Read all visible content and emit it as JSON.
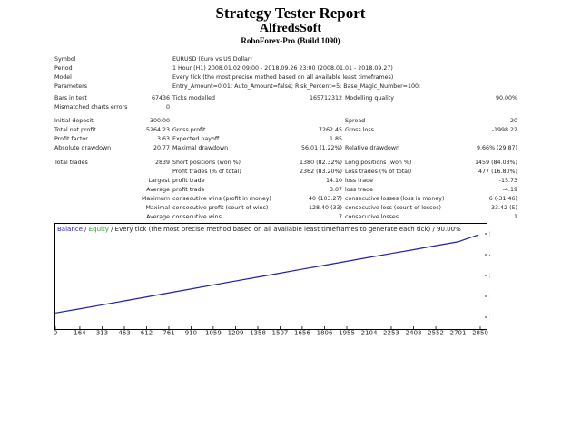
{
  "report": {
    "title": "Strategy Tester Report",
    "company": "AlfredsSoft",
    "server": "RoboForex-Pro (Build 1090)"
  },
  "header_rows": [
    {
      "label": "Symbol",
      "value": "EURUSD (Euro vs US Dollar)"
    },
    {
      "label": "Period",
      "value": "1 Hour (H1) 2008.01.02 09:00 - 2018.09.26 23:00 (2008.01.01 - 2018.09.27)"
    },
    {
      "label": "Model",
      "value": "Every tick (the most precise method based on all available least timeframes)"
    },
    {
      "label": "Parameters",
      "value": "Entry_Amount=0.01; Auto_Amount=false; Risk_Percent=5; Base_Magic_Number=100;"
    }
  ],
  "bars_block": {
    "bars_label": "Bars in test",
    "bars_value": "67436",
    "ticks_label": "Ticks modelled",
    "ticks_value": "165712312",
    "quality_label": "Modelling quality",
    "quality_value": "90.00%",
    "mismatch_label": "Mismatched charts errors",
    "mismatch_value": "0"
  },
  "stats": {
    "initial_deposit_label": "Initial deposit",
    "initial_deposit": "300.00",
    "spread_label": "Spread",
    "spread": "20",
    "net_profit_label": "Total net profit",
    "net_profit": "5264.23",
    "gross_profit_label": "Gross profit",
    "gross_profit": "7262.45",
    "gross_loss_label": "Gross loss",
    "gross_loss": "-1998.22",
    "profit_factor_label": "Profit factor",
    "profit_factor": "3.63",
    "expected_payoff_label": "Expected payoff",
    "expected_payoff": "1.85",
    "abs_dd_label": "Absolute drawdown",
    "abs_dd": "20.77",
    "max_dd_label": "Maximal drawdown",
    "max_dd": "56.01 (1.22%)",
    "rel_dd_label": "Relative drawdown",
    "rel_dd": "9.66% (29.87)"
  },
  "trades": {
    "total_label": "Total trades",
    "total": "2839",
    "short_label": "Short positions (won %)",
    "short": "1380 (82.32%)",
    "long_label": "Long positions (won %)",
    "long": "1459 (84.03%)",
    "profit_trades_label": "Profit trades (% of total)",
    "profit_trades": "2362 (83.20%)",
    "loss_trades_label": "Loss trades (% of total)",
    "loss_trades": "477 (16.80%)",
    "largest_label": "Largest",
    "largest_profit_label": "profit trade",
    "largest_profit": "14.10",
    "largest_loss_label": "loss trade",
    "largest_loss": "-15.73",
    "average_label": "Average",
    "average_profit_label": "profit trade",
    "average_profit": "3.07",
    "average_loss_label": "loss trade",
    "average_loss": "-4.19",
    "maximum_label": "Maximum",
    "max_cons_wins_label": "consecutive wins (profit in money)",
    "max_cons_wins": "40 (103.27)",
    "max_cons_losses_label": "consecutive losses (loss in money)",
    "max_cons_losses": "6 (-31.46)",
    "maximal_label": "Maximal",
    "maximal_cons_profit_label": "consecutive profit (count of wins)",
    "maximal_cons_profit": "128.40 (33)",
    "maximal_cons_loss_label": "consecutive loss (count of losses)",
    "maximal_cons_loss": "-33.42 (5)",
    "avg2_label": "Average",
    "avg_cons_wins_label": "consecutive wins",
    "avg_cons_wins": "7",
    "avg_cons_losses_label": "consecutive losses",
    "avg_cons_losses": "1"
  },
  "chart_data": {
    "type": "line",
    "legend": {
      "balance": "Balance",
      "sep1": " / ",
      "equity": "Equity",
      "rest": " / Every tick (the most precise method based on all available least timeframes to generate each tick) / 90.00%"
    },
    "x_ticks": [
      "0",
      "164",
      "313",
      "463",
      "612",
      "761",
      "910",
      "1059",
      "1209",
      "1358",
      "1507",
      "1656",
      "1806",
      "1955",
      "2104",
      "2253",
      "2403",
      "2552",
      "2701",
      "2850"
    ],
    "y_ticks": [
      "5632",
      "4227",
      "2823",
      "1419",
      "14"
    ],
    "xlim": [
      0,
      2850
    ],
    "ylim": [
      14,
      5632
    ],
    "x": [
      0,
      150,
      300,
      450,
      600,
      750,
      900,
      1050,
      1200,
      1350,
      1500,
      1650,
      1800,
      1950,
      2100,
      2250,
      2400,
      2550,
      2700,
      2839
    ],
    "y": [
      300,
      560,
      820,
      1090,
      1360,
      1630,
      1900,
      2170,
      2440,
      2700,
      2970,
      3240,
      3500,
      3770,
      4040,
      4300,
      4560,
      4830,
      5090,
      5564
    ],
    "colors": {
      "balance": "#1f1fb0",
      "equity": "#22aa22",
      "axis": "#000000"
    }
  }
}
